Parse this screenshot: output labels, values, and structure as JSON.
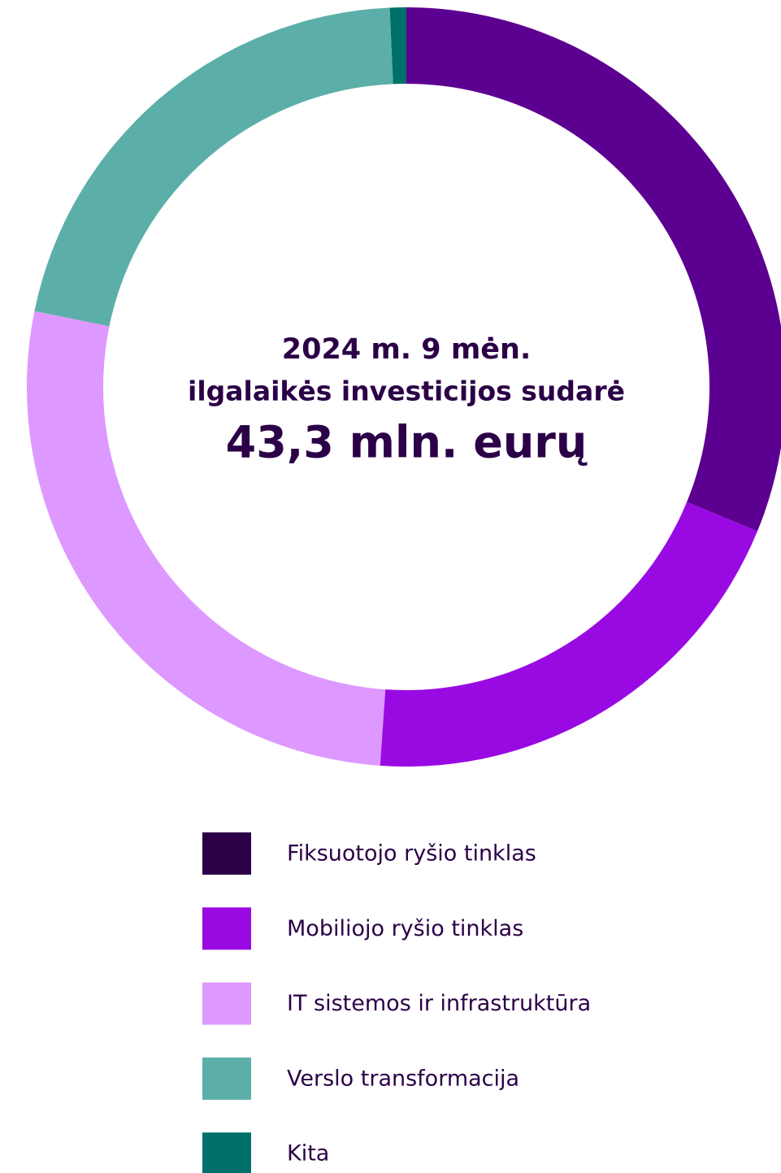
{
  "chart_data": {
    "type": "donut",
    "title_lines": [
      "2024 m. 9 mėn.",
      "ilgalaikės investicijos sudarė"
    ],
    "total_label": "43,3 mln. eurų",
    "categories": [
      "Fiksuotojo ryšio tinklas",
      "Mobiliojo ryšio tinklas",
      "IT sistemos ir infrastruktūra",
      "Verslo transformacija",
      "Kita"
    ],
    "values": [
      31.2,
      19.9,
      27.1,
      21.1,
      0.7
    ],
    "colors": [
      "#5c0091",
      "#990ae3",
      "#dd99ff",
      "#5cafa8",
      "#00706b"
    ],
    "legend_colors": [
      "#2b0047",
      "#990ae3",
      "#dd99ff",
      "#5cafa8",
      "#00706b"
    ],
    "legend": "bottom"
  }
}
